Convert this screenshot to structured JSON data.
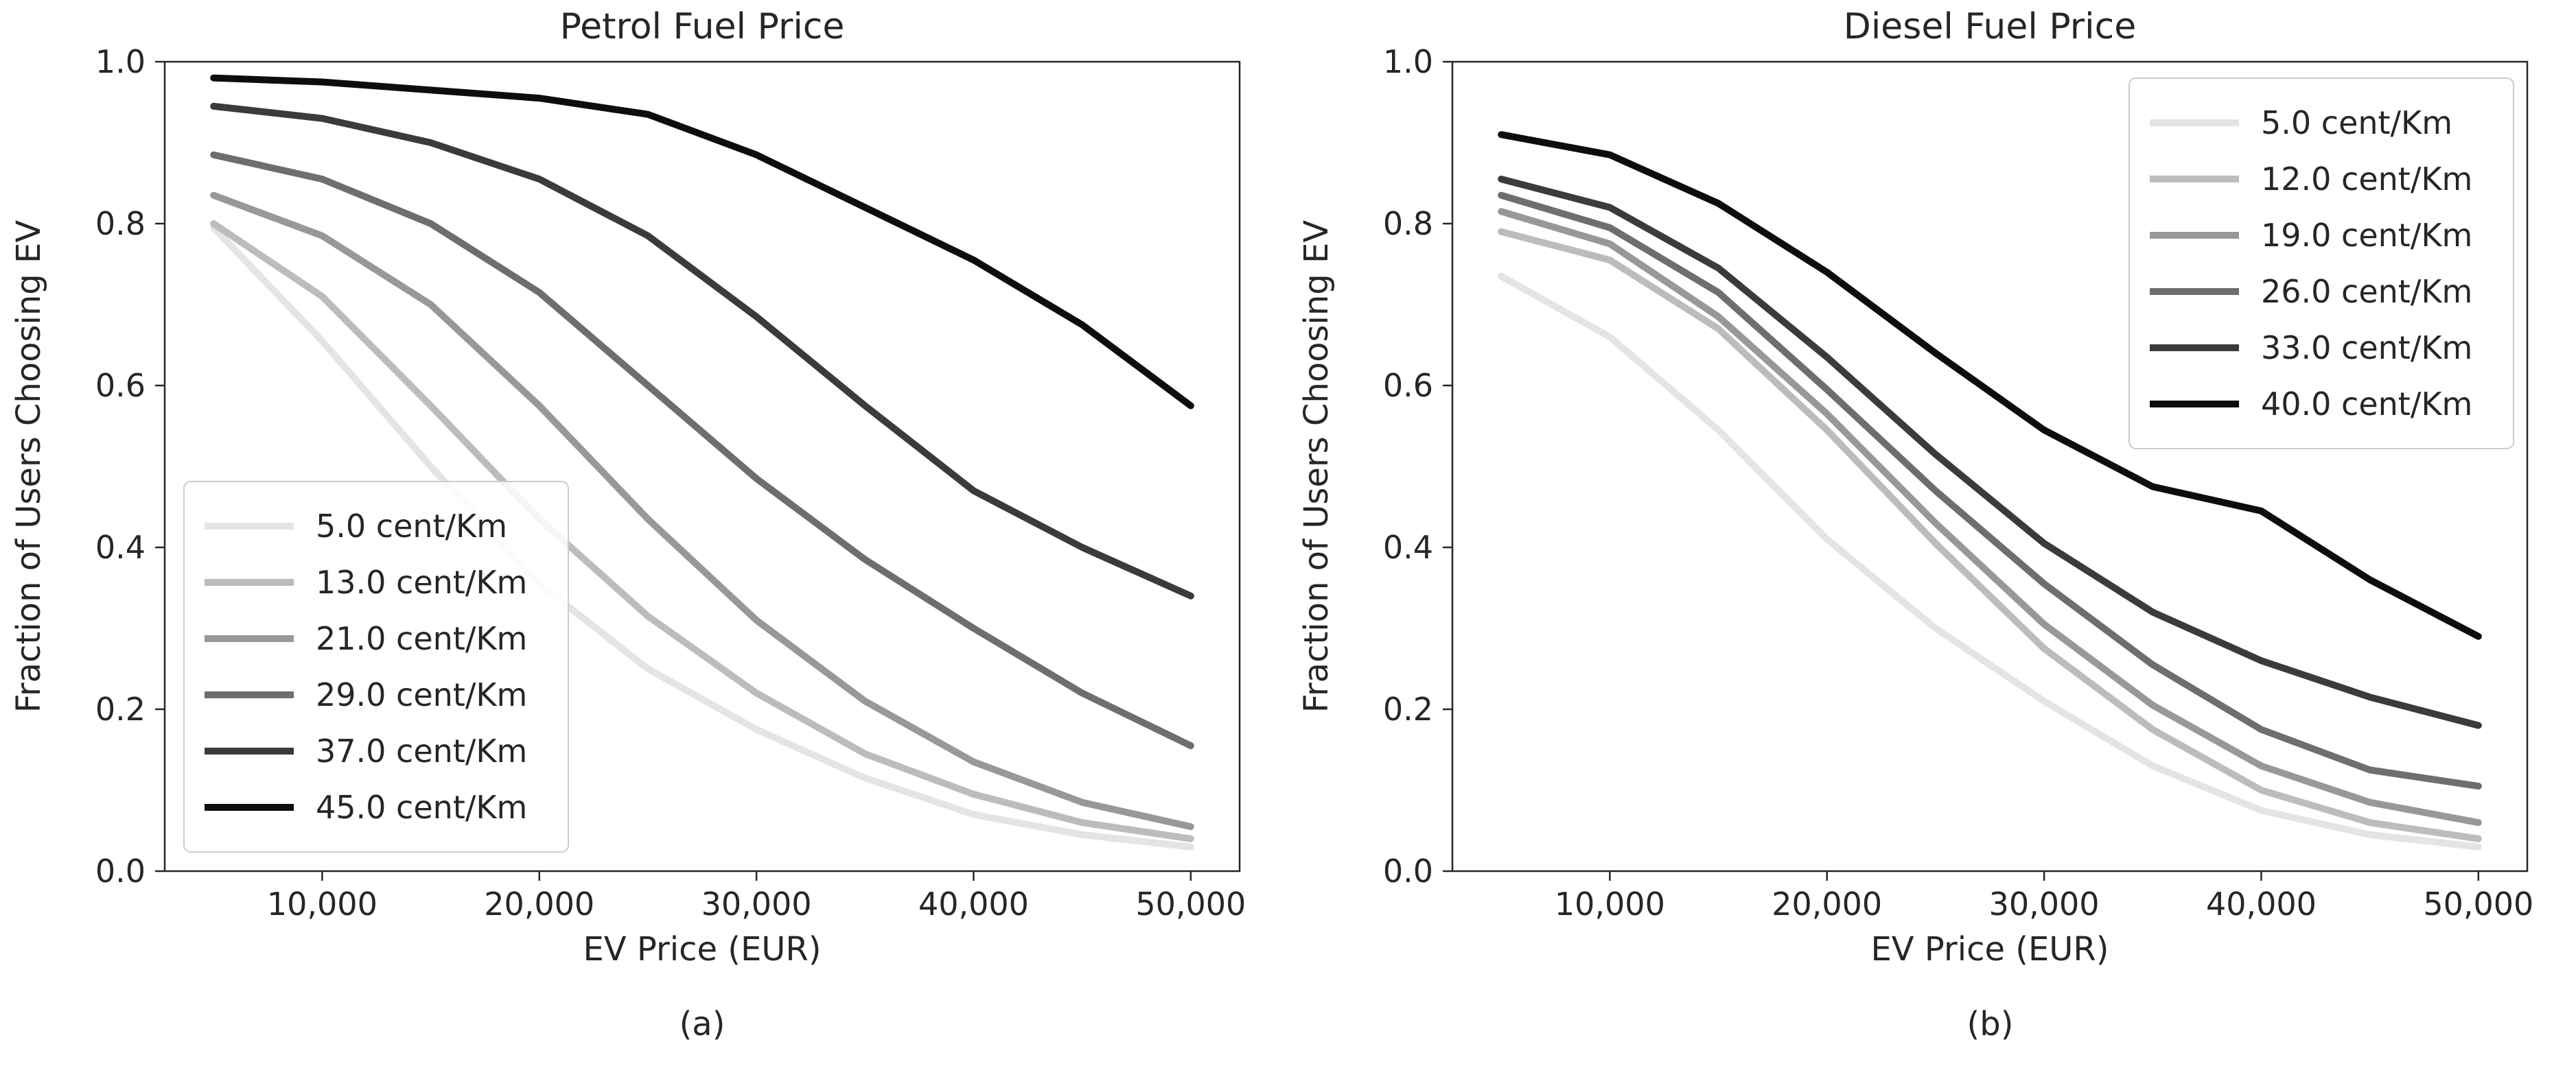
{
  "figure": {
    "background_color": "#ffffff",
    "text_color": "#262626"
  },
  "chart_data": [
    {
      "type": "line",
      "title": "Petrol Fuel Price",
      "caption": "(a)",
      "xlabel": "EV Price (EUR)",
      "ylabel": "Fraction of Users Choosing EV",
      "xlim": [
        2750,
        52250
      ],
      "ylim": [
        0.0,
        1.0
      ],
      "xticks": [
        10000,
        20000,
        30000,
        40000,
        50000
      ],
      "xtick_labels": [
        "10,000",
        "20,000",
        "30,000",
        "40,000",
        "50,000"
      ],
      "yticks": [
        0.0,
        0.2,
        0.4,
        0.6,
        0.8,
        1.0
      ],
      "ytick_labels": [
        "0.0",
        "0.2",
        "0.4",
        "0.6",
        "0.8",
        "1.0"
      ],
      "grid": false,
      "legend_position": "lower-left",
      "x": [
        5000,
        10000,
        15000,
        20000,
        25000,
        30000,
        35000,
        40000,
        45000,
        50000
      ],
      "series": [
        {
          "name": "5.0 cent/Km",
          "color": "#e4e4e4",
          "values": [
            0.795,
            0.655,
            0.5,
            0.355,
            0.25,
            0.175,
            0.115,
            0.07,
            0.045,
            0.03
          ]
        },
        {
          "name": "13.0 cent/Km",
          "color": "#bcbcbc",
          "values": [
            0.8,
            0.71,
            0.575,
            0.435,
            0.315,
            0.22,
            0.145,
            0.095,
            0.06,
            0.04
          ]
        },
        {
          "name": "21.0 cent/Km",
          "color": "#989898",
          "values": [
            0.835,
            0.785,
            0.7,
            0.575,
            0.435,
            0.31,
            0.21,
            0.135,
            0.085,
            0.055
          ]
        },
        {
          "name": "29.0 cent/Km",
          "color": "#6e6e6e",
          "values": [
            0.885,
            0.855,
            0.8,
            0.715,
            0.6,
            0.485,
            0.385,
            0.3,
            0.22,
            0.155
          ]
        },
        {
          "name": "37.0 cent/Km",
          "color": "#3b3b3b",
          "values": [
            0.945,
            0.93,
            0.9,
            0.855,
            0.785,
            0.685,
            0.575,
            0.47,
            0.4,
            0.34
          ]
        },
        {
          "name": "45.0 cent/Km",
          "color": "#0d0d0d",
          "values": [
            0.98,
            0.975,
            0.965,
            0.955,
            0.935,
            0.885,
            0.82,
            0.755,
            0.675,
            0.575
          ]
        }
      ]
    },
    {
      "type": "line",
      "title": "Diesel Fuel Price",
      "caption": "(b)",
      "xlabel": "EV Price (EUR)",
      "ylabel": "Fraction of Users Choosing EV",
      "xlim": [
        2750,
        52250
      ],
      "ylim": [
        0.0,
        1.0
      ],
      "xticks": [
        10000,
        20000,
        30000,
        40000,
        50000
      ],
      "xtick_labels": [
        "10,000",
        "20,000",
        "30,000",
        "40,000",
        "50,000"
      ],
      "yticks": [
        0.0,
        0.2,
        0.4,
        0.6,
        0.8,
        1.0
      ],
      "ytick_labels": [
        "0.0",
        "0.2",
        "0.4",
        "0.6",
        "0.8",
        "1.0"
      ],
      "grid": false,
      "legend_position": "upper-right",
      "x": [
        5000,
        10000,
        15000,
        20000,
        25000,
        30000,
        35000,
        40000,
        45000,
        50000
      ],
      "series": [
        {
          "name": "5.0 cent/Km",
          "color": "#e4e4e4",
          "values": [
            0.735,
            0.66,
            0.545,
            0.41,
            0.3,
            0.21,
            0.13,
            0.075,
            0.045,
            0.03
          ]
        },
        {
          "name": "12.0 cent/Km",
          "color": "#bcbcbc",
          "values": [
            0.79,
            0.755,
            0.67,
            0.545,
            0.405,
            0.275,
            0.175,
            0.1,
            0.06,
            0.04
          ]
        },
        {
          "name": "19.0 cent/Km",
          "color": "#989898",
          "values": [
            0.815,
            0.775,
            0.685,
            0.565,
            0.43,
            0.305,
            0.205,
            0.13,
            0.085,
            0.06
          ]
        },
        {
          "name": "26.0 cent/Km",
          "color": "#6e6e6e",
          "values": [
            0.835,
            0.795,
            0.715,
            0.595,
            0.47,
            0.355,
            0.255,
            0.175,
            0.125,
            0.105
          ]
        },
        {
          "name": "33.0 cent/Km",
          "color": "#3b3b3b",
          "values": [
            0.855,
            0.82,
            0.745,
            0.635,
            0.515,
            0.405,
            0.32,
            0.26,
            0.215,
            0.18
          ]
        },
        {
          "name": "40.0 cent/Km",
          "color": "#0d0d0d",
          "values": [
            0.91,
            0.885,
            0.825,
            0.74,
            0.64,
            0.545,
            0.475,
            0.445,
            0.36,
            0.29
          ]
        }
      ]
    }
  ]
}
